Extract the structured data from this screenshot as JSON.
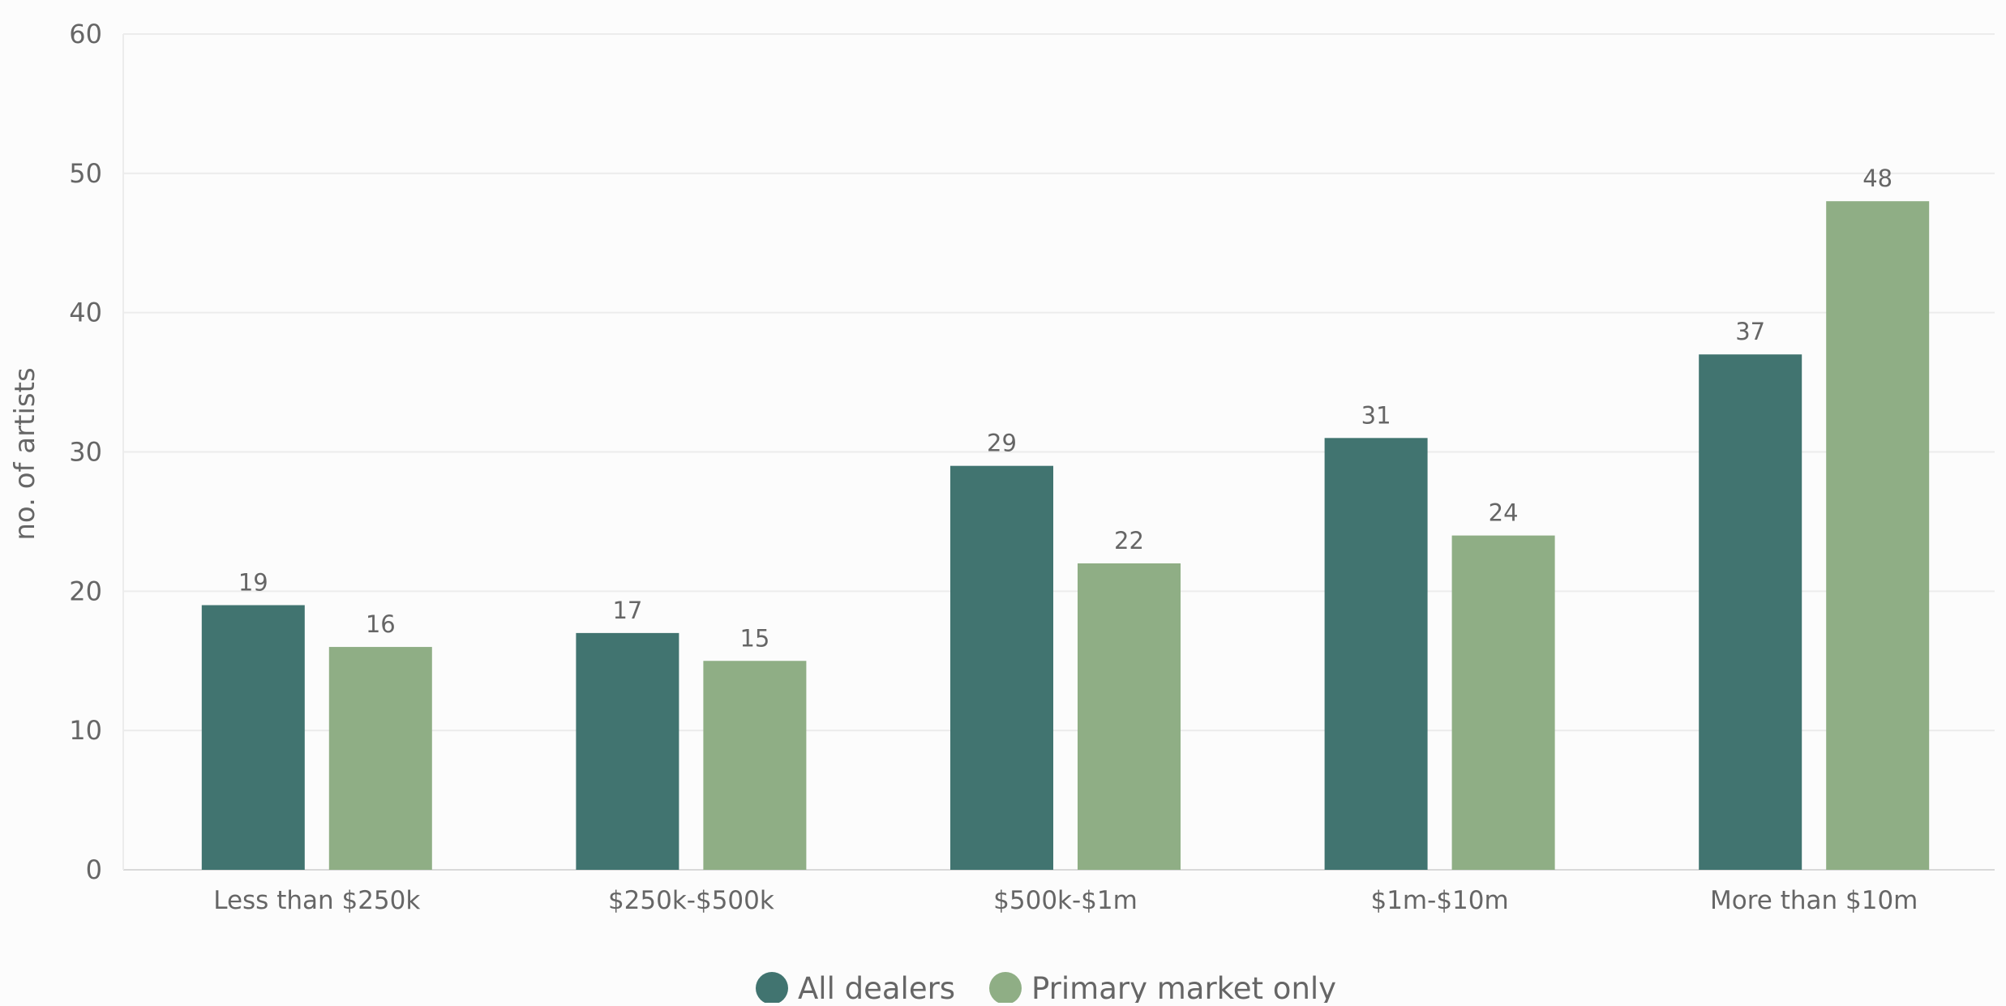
{
  "chart_data": {
    "type": "bar",
    "title": "",
    "xlabel": "",
    "ylabel": "no. of artists",
    "ylim": [
      0,
      60
    ],
    "yticks": [
      0,
      10,
      20,
      30,
      40,
      50,
      60
    ],
    "grid": true,
    "legend_position": "bottom-center",
    "categories": [
      "Less than $250k",
      "$250k-$500k",
      "$500k-$1m",
      "$1m-$10m",
      "More than $10m"
    ],
    "series": [
      {
        "name": "All dealers",
        "color": "#417470",
        "values": [
          19,
          17,
          29,
          31,
          37
        ]
      },
      {
        "name": "Primary market only",
        "color": "#8fae85",
        "values": [
          16,
          15,
          22,
          24,
          48
        ]
      }
    ],
    "show_value_labels": true
  }
}
